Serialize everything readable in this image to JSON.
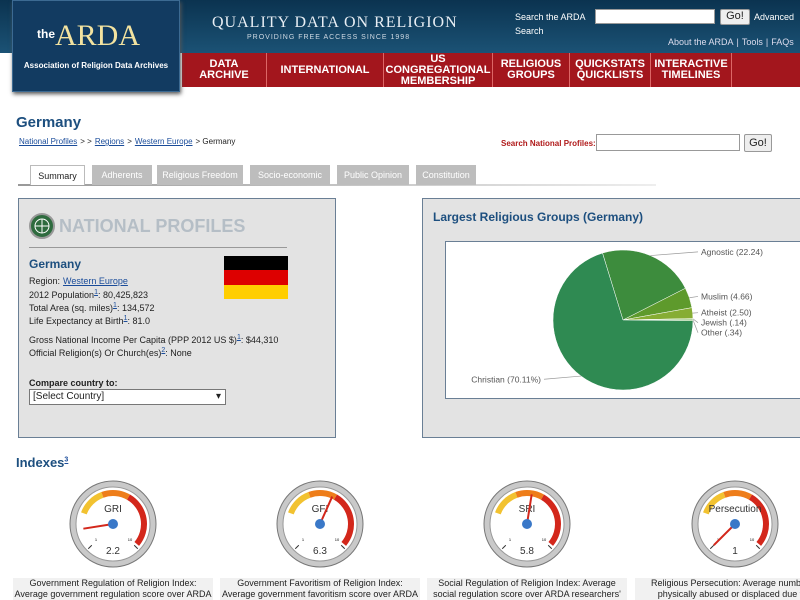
{
  "header": {
    "logo_the": "the",
    "logo_name": "ARDA",
    "logo_sub": "Association of Religion Data Archives",
    "tagline": "QUALITY DATA ON RELIGION",
    "tagline_sub": "PROVIDING FREE ACCESS SINCE 1998",
    "search_label": "Search the ARDA",
    "go": "Go!",
    "advanced": "Advanced",
    "search_word": "Search",
    "links": [
      "About the ARDA",
      "|",
      "Tools",
      "|",
      "FAQs"
    ]
  },
  "nav": [
    [
      "DATA",
      "ARCHIVE"
    ],
    [
      "INTERNATIONAL"
    ],
    [
      "US CONGREGATIONAL",
      "MEMBERSHIP"
    ],
    [
      "RELIGIOUS",
      "GROUPS"
    ],
    [
      "QUICKSTATS",
      "QUICKLISTS"
    ],
    [
      "INTERACTIVE",
      "TIMELINES"
    ]
  ],
  "page": {
    "title": "Germany",
    "breadcrumb": [
      "National Profiles",
      "> >",
      "Regions",
      ">",
      "Western Europe",
      "> Germany"
    ],
    "search_label": "Search National Profiles:",
    "go": "Go!"
  },
  "tabs": [
    "Summary",
    "Adherents",
    "Religious Freedom",
    "Socio-economic",
    "Public Opinion",
    "Constitution"
  ],
  "profile": {
    "banner": "NATIONAL PROFILES",
    "country": "Germany",
    "rows": [
      {
        "label": "Region:",
        "value": "Western Europe"
      },
      {
        "label": "2012 Population",
        "note": "1",
        "value": ": 80,425,823"
      },
      {
        "label": "Total Area (sq. miles)",
        "note": "1",
        "value": ": 134,572"
      },
      {
        "label": "Life Expectancy at Birth",
        "note": "1",
        "value": ": 81.0"
      },
      {
        "label": "Gross National Income Per Capita (PPP 2012 US $)",
        "note": "1",
        "value": ": $44,310"
      },
      {
        "label": "Official Religion(s) Or Church(es)",
        "note": "2",
        "value": ": None"
      }
    ],
    "compare_label": "Compare country to:",
    "select": "[Select Country]"
  },
  "chart_data": {
    "type": "pie",
    "title": "Largest Religious Groups (Germany)",
    "labels": [
      "Agnostic (22.24)",
      "Muslim (4.66)",
      "Atheist (2.50)",
      "Jewish (.14)",
      "Other (.34)",
      "Christian (70.11%)"
    ],
    "values": [
      22.24,
      4.66,
      2.5,
      0.14,
      0.34,
      70.11
    ],
    "colors": [
      "#3d8c3d",
      "#5e9a2c",
      "#86ad33",
      "#9fbf45",
      "#6fae4a",
      "#2f8a52"
    ]
  },
  "indexes": {
    "title": "Indexes",
    "note": "3",
    "scale_ticks": [
      1,
      10
    ],
    "gauges": [
      {
        "name": "GRI",
        "value": 2.2,
        "caption": [
          "Government Regulation of Religion Index:",
          "Average government regulation score over ARDA"
        ]
      },
      {
        "name": "GFI",
        "value": 6.3,
        "caption": [
          "Government Favoritism of Religion Index:",
          "Average government favoritism score over ARDA"
        ]
      },
      {
        "name": "SRI",
        "value": 5.8,
        "caption": [
          "Social Regulation of Religion Index: Average",
          "social regulation score over ARDA researchers'"
        ]
      },
      {
        "name": "Persecution",
        "value": 1,
        "caption": [
          "Religious Persecution: Average number of",
          "physically abused or displaced due to t"
        ]
      }
    ]
  }
}
